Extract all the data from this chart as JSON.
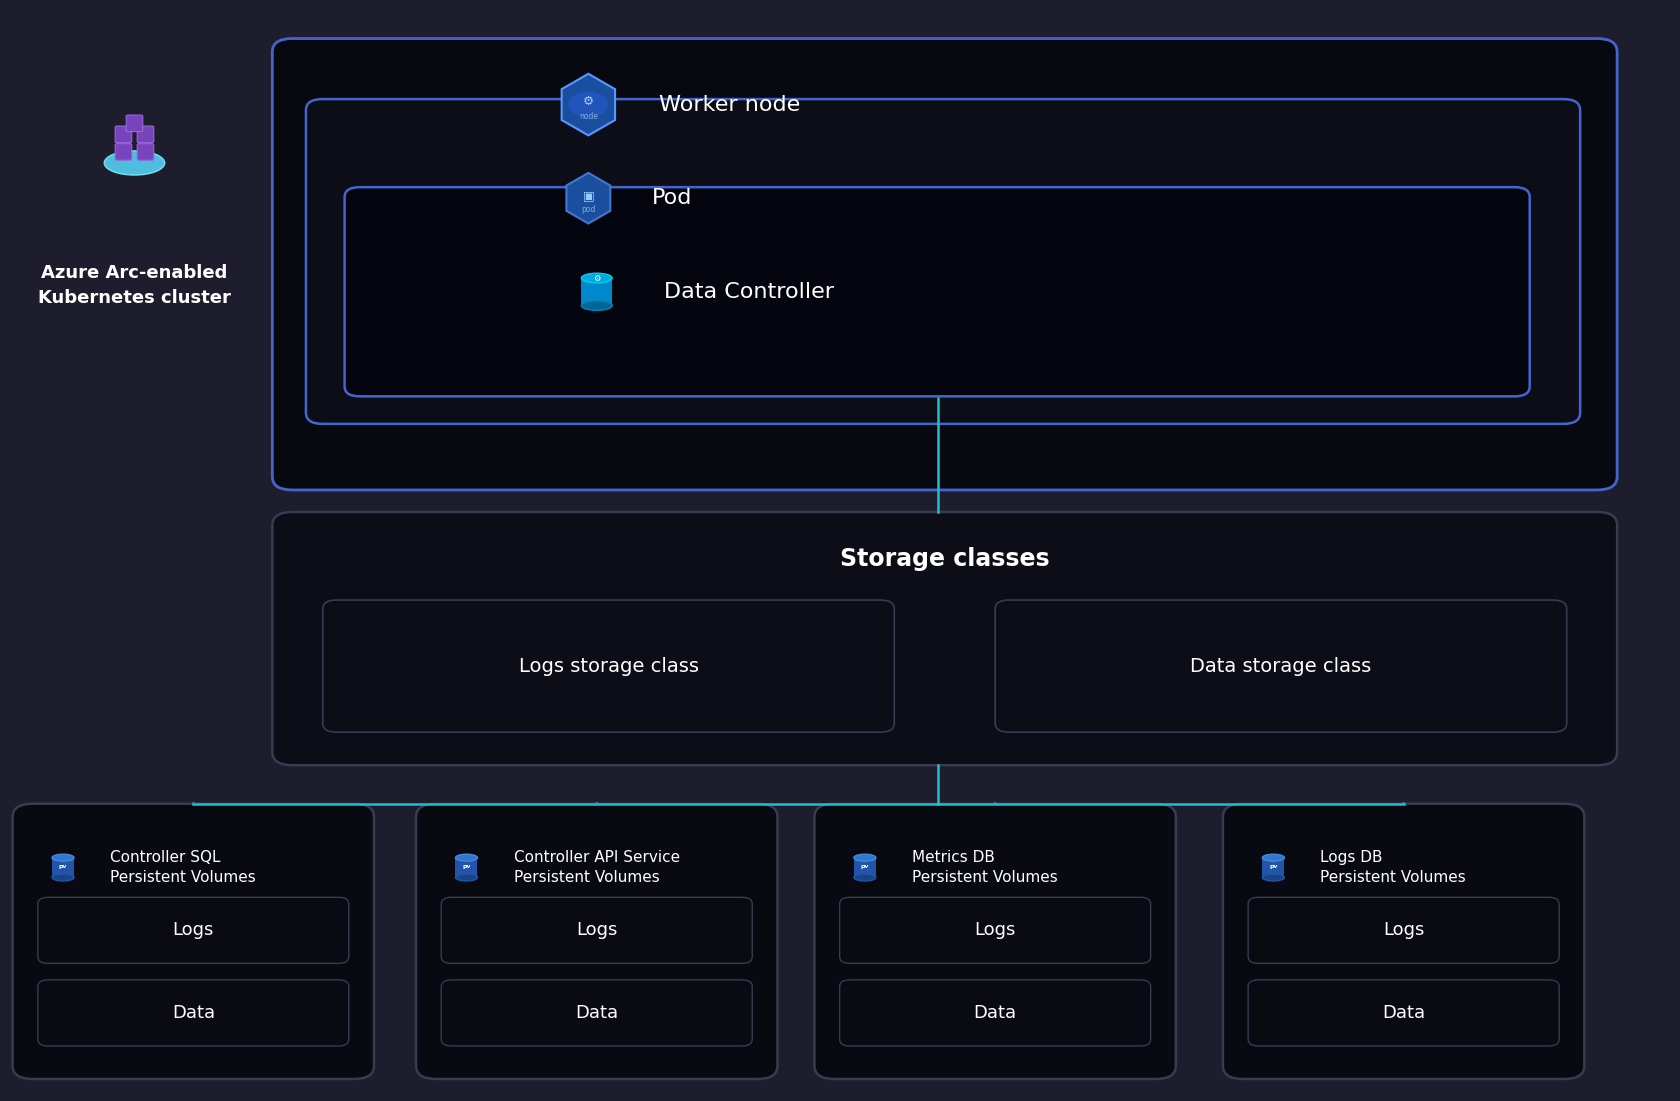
{
  "bg_color": "#1e1d2d",
  "box_black": "#080810",
  "box_dark": "#0d0d18",
  "border_gray": "#3a3a50",
  "border_blue_light": "#4466cc",
  "border_blue": "#2244aa",
  "teal": "#20c0c8",
  "white": "#ffffff",
  "icon_blue_dark": "#1a3a8a",
  "icon_blue_mid": "#2255bb",
  "icon_blue_light": "#3377dd",
  "icon_hex_edge": "#4488ff",
  "worker_label": "Worker node",
  "pod_label": "Pod",
  "dc_label": "Data Controller",
  "storage_title": "Storage classes",
  "logs_sc_label": "Logs storage class",
  "data_sc_label": "Data storage class",
  "arc_label1": "Azure Arc-enabled",
  "arc_label2": "Kubernetes cluster",
  "pv_titles": [
    "Controller SQL\nPersistent Volumes",
    "Controller API Service\nPersistent Volumes",
    "Metrics DB\nPersistent Volumes",
    "Logs DB\nPersistent Volumes"
  ],
  "title_fs": 16,
  "label_fs": 14,
  "sub_fs": 12,
  "arc_fs": 13
}
